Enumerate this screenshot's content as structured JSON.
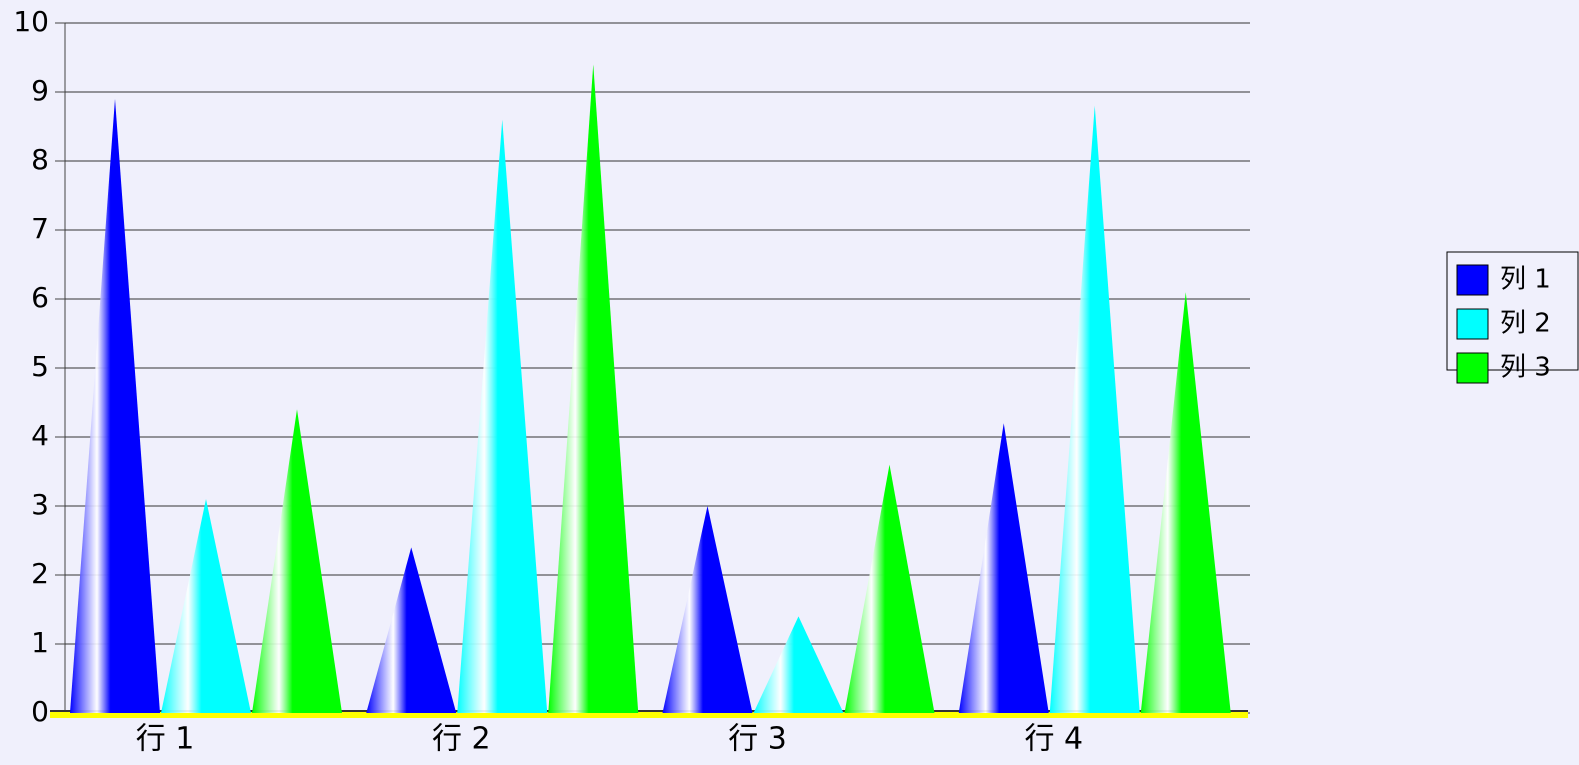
{
  "chart_data": {
    "type": "cone",
    "categories": [
      "行 1",
      "行 2",
      "行 3",
      "行 4"
    ],
    "series": [
      {
        "name": "列 1",
        "color": "#0000ff",
        "values": [
          8.9,
          2.4,
          3.0,
          4.2
        ]
      },
      {
        "name": "列 2",
        "color": "#00ffff",
        "values": [
          3.1,
          8.6,
          1.4,
          8.8
        ]
      },
      {
        "name": "列 3",
        "color": "#00ff00",
        "values": [
          4.4,
          9.4,
          3.6,
          6.1
        ]
      }
    ],
    "ylim": [
      0,
      10
    ],
    "yticks": [
      0,
      1,
      2,
      3,
      4,
      5,
      6,
      7,
      8,
      9,
      10
    ],
    "grid": true,
    "legend": "right"
  }
}
